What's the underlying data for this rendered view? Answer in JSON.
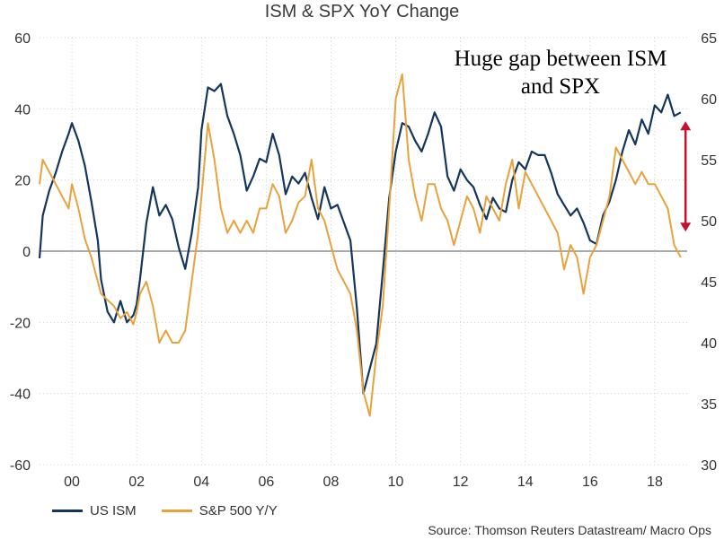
{
  "chart_data": {
    "type": "line",
    "title": "ISM & SPX YoY Change",
    "left_axis": {
      "ylim": [
        -60,
        60
      ],
      "ticks": [
        "60",
        "40",
        "20",
        "0",
        "-20",
        "-40",
        "-60"
      ]
    },
    "right_axis": {
      "ylim": [
        30,
        65
      ],
      "ticks": [
        "65",
        "60",
        "55",
        "50",
        "45",
        "40",
        "35",
        "30"
      ]
    },
    "x_range": [
      1999.0,
      2019.0
    ],
    "x_ticks": [
      {
        "value": 2000,
        "label": "00"
      },
      {
        "value": 2002,
        "label": "02"
      },
      {
        "value": 2004,
        "label": "04"
      },
      {
        "value": 2006,
        "label": "06"
      },
      {
        "value": 2008,
        "label": "08"
      },
      {
        "value": 2010,
        "label": "10"
      },
      {
        "value": 2012,
        "label": "12"
      },
      {
        "value": 2014,
        "label": "14"
      },
      {
        "value": 2016,
        "label": "16"
      },
      {
        "value": 2018,
        "label": "18"
      }
    ],
    "grid": true,
    "legend_position": "bottom-left",
    "series": [
      {
        "name": "US ISM",
        "axis": "left",
        "color": "#15365c",
        "x": [
          1999.0,
          1999.1,
          1999.3,
          1999.5,
          1999.7,
          1999.9,
          2000.0,
          2000.2,
          2000.4,
          2000.6,
          2000.8,
          2000.9,
          2001.1,
          2001.3,
          2001.5,
          2001.7,
          2001.9,
          2002.0,
          2002.1,
          2002.3,
          2002.5,
          2002.7,
          2002.9,
          2003.1,
          2003.3,
          2003.5,
          2003.7,
          2003.9,
          2004.0,
          2004.2,
          2004.4,
          2004.6,
          2004.8,
          2005.0,
          2005.2,
          2005.4,
          2005.6,
          2005.8,
          2006.0,
          2006.2,
          2006.4,
          2006.6,
          2006.8,
          2007.0,
          2007.2,
          2007.4,
          2007.6,
          2007.8,
          2008.0,
          2008.2,
          2008.4,
          2008.6,
          2008.8,
          2009.0,
          2009.2,
          2009.4,
          2009.6,
          2009.8,
          2010.0,
          2010.2,
          2010.4,
          2010.6,
          2010.8,
          2011.0,
          2011.2,
          2011.4,
          2011.6,
          2011.8,
          2012.0,
          2012.2,
          2012.4,
          2012.6,
          2012.8,
          2013.0,
          2013.2,
          2013.4,
          2013.6,
          2013.8,
          2014.0,
          2014.2,
          2014.4,
          2014.6,
          2014.8,
          2015.0,
          2015.2,
          2015.4,
          2015.6,
          2015.8,
          2016.0,
          2016.2,
          2016.4,
          2016.6,
          2016.8,
          2017.0,
          2017.2,
          2017.4,
          2017.6,
          2017.8,
          2018.0,
          2018.2,
          2018.4,
          2018.6,
          2018.8
        ],
        "y": [
          -2,
          10,
          17,
          22,
          28,
          33,
          36,
          31,
          24,
          14,
          3,
          -8,
          -17,
          -20,
          -14,
          -20,
          -18,
          -15,
          -8,
          8,
          18,
          10,
          13,
          9,
          1,
          -5,
          5,
          18,
          34,
          46,
          45,
          47,
          38,
          33,
          27,
          17,
          21,
          26,
          25,
          33,
          27,
          16,
          21,
          19,
          22,
          15,
          9,
          18,
          12,
          13,
          8,
          3,
          -16,
          -40,
          -33,
          -26,
          -6,
          15,
          28,
          36,
          35,
          31,
          28,
          33,
          39,
          35,
          21,
          17,
          23,
          20,
          18,
          13,
          9,
          15,
          12,
          11,
          20,
          25,
          23,
          28,
          27,
          27,
          22,
          16,
          13,
          10,
          12,
          8,
          3,
          2,
          10,
          14,
          20,
          28,
          34,
          30,
          37,
          33,
          41,
          39,
          44,
          38,
          39
        ],
        "label": "US ISM"
      },
      {
        "name": "S&P 500 Y/Y",
        "axis": "right",
        "color": "#e8a23b",
        "x": [
          1999.0,
          1999.1,
          1999.3,
          1999.5,
          1999.7,
          1999.9,
          2000.0,
          2000.2,
          2000.4,
          2000.6,
          2000.8,
          2000.9,
          2001.1,
          2001.3,
          2001.5,
          2001.7,
          2001.9,
          2002.0,
          2002.1,
          2002.3,
          2002.5,
          2002.7,
          2002.9,
          2003.1,
          2003.3,
          2003.5,
          2003.7,
          2003.9,
          2004.0,
          2004.2,
          2004.4,
          2004.6,
          2004.8,
          2005.0,
          2005.2,
          2005.4,
          2005.6,
          2005.8,
          2006.0,
          2006.2,
          2006.4,
          2006.6,
          2006.8,
          2007.0,
          2007.2,
          2007.4,
          2007.6,
          2007.8,
          2008.0,
          2008.2,
          2008.4,
          2008.6,
          2008.8,
          2009.0,
          2009.2,
          2009.4,
          2009.6,
          2009.8,
          2010.0,
          2010.2,
          2010.4,
          2010.6,
          2010.8,
          2011.0,
          2011.2,
          2011.4,
          2011.6,
          2011.8,
          2012.0,
          2012.2,
          2012.4,
          2012.6,
          2012.8,
          2013.0,
          2013.2,
          2013.4,
          2013.6,
          2013.8,
          2014.0,
          2014.2,
          2014.4,
          2014.6,
          2014.8,
          2015.0,
          2015.2,
          2015.4,
          2015.6,
          2015.8,
          2016.0,
          2016.2,
          2016.4,
          2016.6,
          2016.8,
          2017.0,
          2017.2,
          2017.4,
          2017.6,
          2017.8,
          2018.0,
          2018.2,
          2018.4,
          2018.6,
          2018.8
        ],
        "y": [
          53,
          55,
          54,
          53,
          52,
          51,
          53,
          51,
          48.5,
          47,
          45,
          44,
          43.5,
          43,
          42,
          42.5,
          41.5,
          42.5,
          44,
          45,
          43,
          40,
          41,
          40,
          40,
          41,
          45,
          49,
          52,
          58,
          55,
          51,
          49,
          50,
          49,
          50,
          49,
          51,
          51,
          53,
          52,
          49,
          50,
          51.5,
          52,
          55,
          51,
          50,
          48,
          46,
          45,
          44,
          41,
          36,
          34,
          39,
          43,
          51,
          60,
          62,
          55,
          52,
          50,
          53,
          53,
          51,
          50,
          48,
          50,
          52,
          51,
          49,
          52,
          51,
          50,
          53,
          55,
          51,
          54,
          53,
          52,
          51,
          50,
          49,
          46,
          48,
          47,
          44,
          47,
          48,
          50,
          52,
          56,
          55,
          54,
          53,
          54,
          53,
          53,
          52,
          51,
          48,
          47
        ],
        "label": "S&P 500 Y/Y"
      }
    ],
    "annotation": {
      "lines": [
        "Huge gap between ISM",
        "and SPX"
      ],
      "arrow_color": "#c8102e",
      "arrow_x": 2018.95,
      "arrow_from_left_value": 36,
      "arrow_to_left_value": 6
    }
  },
  "legend": {
    "ism_label": "US ISM",
    "spx_label": "S&P 500 Y/Y",
    "ism_color": "#15365c",
    "spx_color": "#e8a23b"
  },
  "source": "Source: Thomson Reuters Datastream/ Macro Ops"
}
